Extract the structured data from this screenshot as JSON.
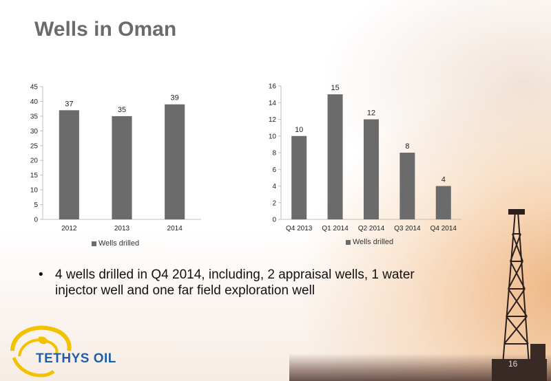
{
  "slide": {
    "title": "Wells in Oman",
    "bullet": "4 wells drilled in Q4 2014, including, 2 appraisal wells, 1 water injector well and one far field exploration well",
    "bullet_symbol": "•",
    "logo_text": "TETHYS OIL",
    "page_number": "16"
  },
  "chart_data": [
    {
      "type": "bar",
      "categories": [
        "2012",
        "2013",
        "2014"
      ],
      "series": [
        {
          "name": "Wells drilled",
          "values": [
            37,
            35,
            39
          ],
          "color": "#6b6b6b"
        }
      ],
      "ylim": [
        0,
        45
      ],
      "yticks": [
        0,
        5,
        10,
        15,
        20,
        25,
        30,
        35,
        40,
        45
      ],
      "data_labels": true,
      "grid": false,
      "legend": "bottom"
    },
    {
      "type": "bar",
      "categories": [
        "Q4 2013",
        "Q1 2014",
        "Q2 2014",
        "Q3 2014",
        "Q4 2014"
      ],
      "series": [
        {
          "name": "Wells drilled",
          "values": [
            10,
            15,
            12,
            8,
            4
          ],
          "color": "#6b6b6b"
        }
      ],
      "ylim": [
        0,
        16
      ],
      "yticks": [
        0,
        2,
        4,
        6,
        8,
        10,
        12,
        14,
        16
      ],
      "data_labels": true,
      "grid": false,
      "legend": "bottom"
    }
  ]
}
